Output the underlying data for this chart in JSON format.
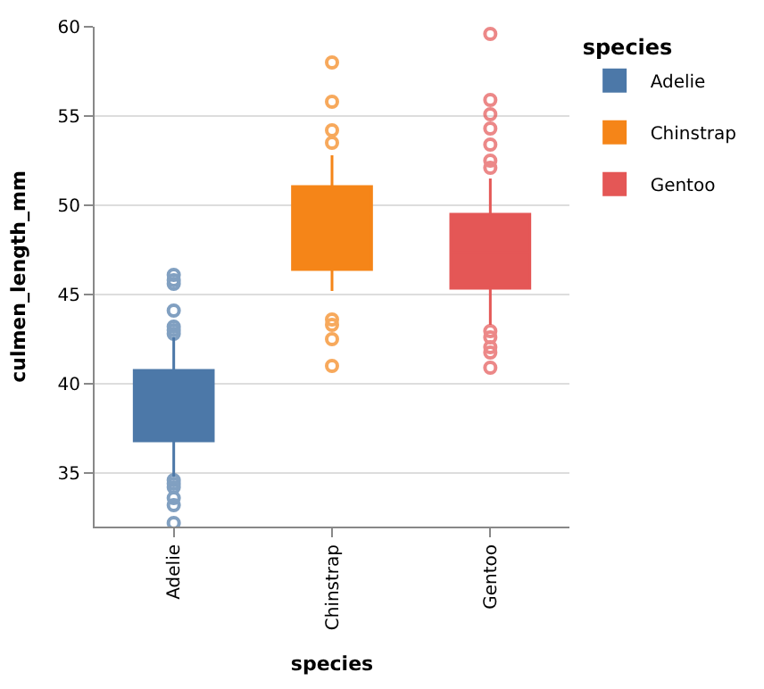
{
  "chart_data": {
    "type": "box",
    "xlabel": "species",
    "ylabel": "culmen_length_mm",
    "legend_title": "species",
    "categories": [
      "Adelie",
      "Chinstrap",
      "Gentoo"
    ],
    "series": [
      {
        "name": "Adelie",
        "color": "#4c78a8",
        "boxes": [
          {
            "low": 34.8,
            "q1": 36.8,
            "median": 38.8,
            "q3": 40.75,
            "high": 42.6,
            "outliers": [
              46.1,
              45.8,
              45.6,
              44.1,
              43.2,
              43.0,
              42.8,
              34.6,
              34.4,
              34.2,
              33.6,
              33.2,
              32.2
            ]
          },
          null,
          null
        ]
      },
      {
        "name": "Chinstrap",
        "color": "#f58518",
        "boxes": [
          null,
          {
            "low": 45.2,
            "q1": 46.4,
            "median": 49.55,
            "q3": 51.05,
            "high": 52.8,
            "outliers": [
              58.0,
              55.8,
              54.2,
              53.5,
              43.6,
              43.3,
              42.5,
              41.0
            ]
          },
          null
        ]
      },
      {
        "name": "Gentoo",
        "color": "#e45756",
        "boxes": [
          null,
          null,
          {
            "low": 43.3,
            "q1": 45.35,
            "median": 47.35,
            "q3": 49.5,
            "high": 51.5,
            "outliers": [
              59.6,
              55.9,
              55.1,
              54.3,
              53.4,
              52.5,
              52.1,
              42.95,
              42.6,
              42.05,
              41.75,
              40.9
            ]
          }
        ]
      }
    ],
    "ylim": [
      32,
      60
    ],
    "yticks": [
      35,
      40,
      45,
      50,
      55,
      60
    ],
    "grid": "y",
    "legend": "top right"
  }
}
